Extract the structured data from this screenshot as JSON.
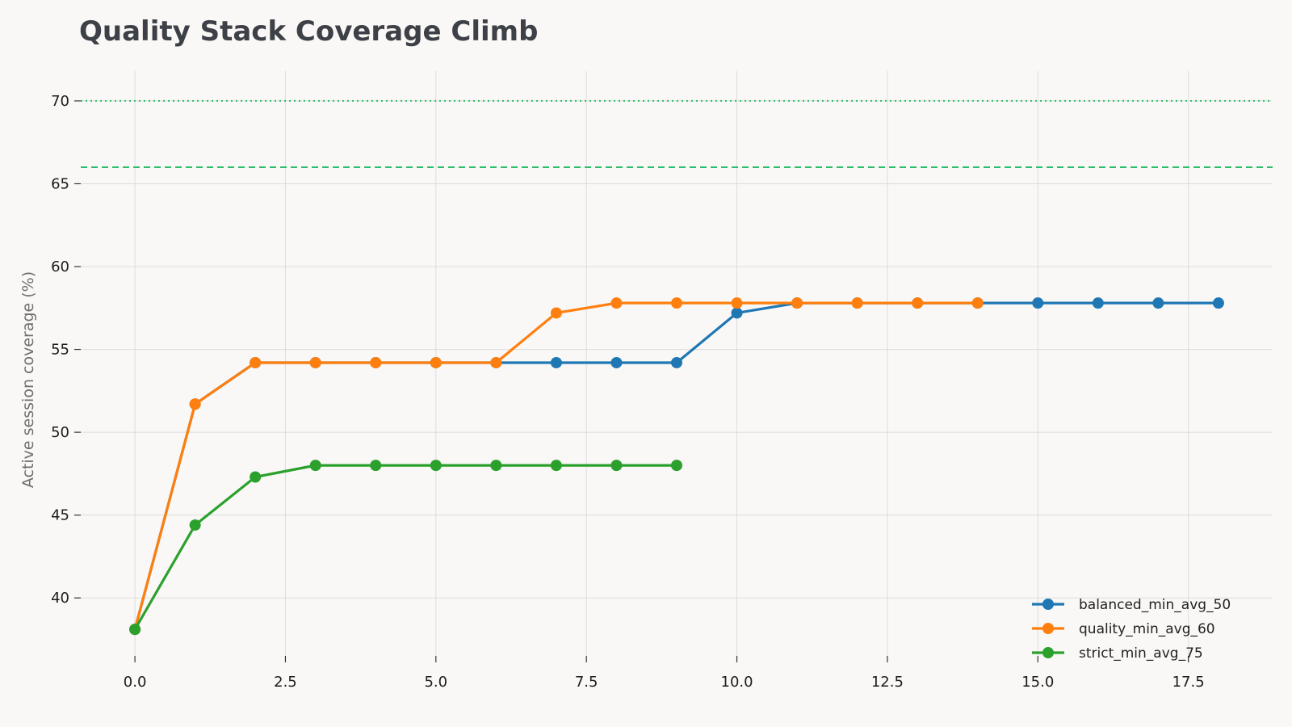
{
  "chart_data": {
    "type": "line",
    "title": "Quality Stack Coverage Climb",
    "xlabel": "",
    "ylabel": "Active session coverage (%)",
    "xlim": [
      -0.9,
      18.9
    ],
    "ylim": [
      36.5,
      71.8
    ],
    "xticks": [
      0,
      2.5,
      5,
      7.5,
      10,
      12.5,
      15,
      17.5
    ],
    "xtick_labels": [
      "0.0",
      "2.5",
      "5.0",
      "7.5",
      "10.0",
      "12.5",
      "15.0",
      "17.5"
    ],
    "yticks": [
      40,
      45,
      50,
      55,
      60,
      65,
      70
    ],
    "ytick_labels": [
      "40",
      "45",
      "50",
      "55",
      "60",
      "65",
      "70"
    ],
    "grid": true,
    "legend_position": "lower-right",
    "reference_lines": [
      {
        "y": 70,
        "style": "dotted",
        "color": "#2ebd6b"
      },
      {
        "y": 66,
        "style": "dashed",
        "color": "#2ebd6b"
      }
    ],
    "series": [
      {
        "name": "balanced_min_avg_50",
        "color": "#1f77b4",
        "x": [
          0,
          1,
          2,
          3,
          4,
          5,
          6,
          7,
          8,
          9,
          10,
          11,
          12,
          13,
          14,
          15,
          16,
          17,
          18
        ],
        "y": [
          38.1,
          51.7,
          54.2,
          54.2,
          54.2,
          54.2,
          54.2,
          54.2,
          54.2,
          54.2,
          57.2,
          57.8,
          57.8,
          57.8,
          57.8,
          57.8,
          57.8,
          57.8,
          57.8
        ]
      },
      {
        "name": "quality_min_avg_60",
        "color": "#ff7f0e",
        "x": [
          0,
          1,
          2,
          3,
          4,
          5,
          6,
          7,
          8,
          9,
          10,
          11,
          12,
          13,
          14
        ],
        "y": [
          38.1,
          51.7,
          54.2,
          54.2,
          54.2,
          54.2,
          54.2,
          57.2,
          57.8,
          57.8,
          57.8,
          57.8,
          57.8,
          57.8,
          57.8
        ]
      },
      {
        "name": "strict_min_avg_75",
        "color": "#2ca02c",
        "x": [
          0,
          1,
          2,
          3,
          4,
          5,
          6,
          7,
          8,
          9
        ],
        "y": [
          38.1,
          44.4,
          47.3,
          48.0,
          48.0,
          48.0,
          48.0,
          48.0,
          48.0,
          48.0
        ]
      }
    ]
  }
}
